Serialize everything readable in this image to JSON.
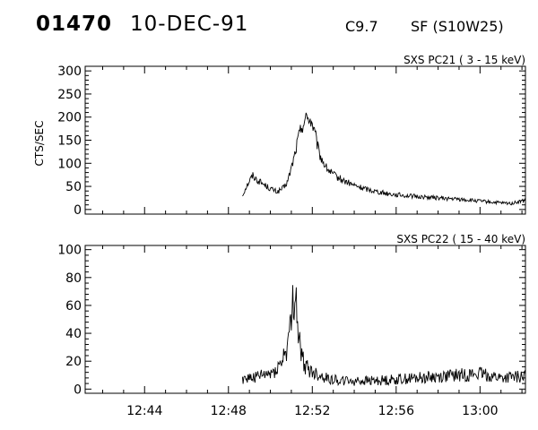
{
  "header": {
    "event_id": "01470",
    "date": "10-DEC-91",
    "flare_class": "C9.7",
    "flare_location": "SF (S10W25)"
  },
  "chart_data": [
    {
      "type": "line",
      "title": "SXS PC21  (  3 - 15 keV)",
      "ylabel": "CTS/SEC",
      "xlabel": "",
      "xlim": [
        "12:41:10",
        "13:02:10"
      ],
      "ylim": [
        -10,
        310
      ],
      "yticks": [
        0,
        50,
        100,
        150,
        200,
        250,
        300
      ],
      "xticks": [
        "12:44",
        "12:48",
        "12:52",
        "12:56",
        "13:00"
      ],
      "series": [
        {
          "x": [
            "12:48:40",
            "12:48:50",
            "12:49:00",
            "12:49:10",
            "12:49:20",
            "12:49:40",
            "12:50:00",
            "12:50:20",
            "12:50:40",
            "12:50:50",
            "12:51:00",
            "12:51:10",
            "12:51:20",
            "12:51:30",
            "12:51:40",
            "12:51:50",
            "12:52:00",
            "12:52:10",
            "12:52:20",
            "12:52:40",
            "12:53:00",
            "12:53:30",
            "12:54:00",
            "12:54:30",
            "12:55:00",
            "12:55:30",
            "12:56:00",
            "12:57:00",
            "12:58:00",
            "12:59:00",
            "13:00:00",
            "13:01:00",
            "13:01:30",
            "13:02:10"
          ],
          "values": [
            30,
            48,
            62,
            74,
            65,
            55,
            45,
            38,
            48,
            62,
            90,
            120,
            155,
            180,
            195,
            200,
            185,
            155,
            120,
            90,
            75,
            62,
            52,
            45,
            40,
            35,
            32,
            28,
            25,
            22,
            18,
            14,
            13,
            20
          ]
        }
      ]
    },
    {
      "type": "line",
      "title": "SXS PC22  ( 15 - 40 keV)",
      "ylabel": "",
      "xlabel": "",
      "xlim": [
        "12:41:10",
        "13:02:10"
      ],
      "ylim": [
        -3,
        103
      ],
      "yticks": [
        0,
        20,
        40,
        60,
        80,
        100
      ],
      "xticks": [
        "12:44",
        "12:48",
        "12:52",
        "12:56",
        "13:00"
      ],
      "series": [
        {
          "x": [
            "12:48:40",
            "12:49:00",
            "12:49:30",
            "12:50:00",
            "12:50:15",
            "12:50:30",
            "12:50:40",
            "12:50:50",
            "12:51:00",
            "12:51:05",
            "12:51:10",
            "12:51:15",
            "12:51:20",
            "12:51:25",
            "12:51:30",
            "12:51:40",
            "12:51:50",
            "12:52:00",
            "12:52:20",
            "12:52:40",
            "12:53:00",
            "12:53:30",
            "12:54:00",
            "12:55:00",
            "12:56:00",
            "12:57:00",
            "12:58:00",
            "12:59:00",
            "13:00:00",
            "13:01:00",
            "13:02:10"
          ],
          "values": [
            8,
            8,
            9,
            11,
            14,
            18,
            25,
            32,
            45,
            62,
            74,
            58,
            42,
            30,
            22,
            17,
            14,
            12,
            10,
            8,
            7,
            6,
            6,
            6,
            7,
            8,
            9,
            10,
            11,
            8,
            9
          ]
        }
      ]
    }
  ]
}
